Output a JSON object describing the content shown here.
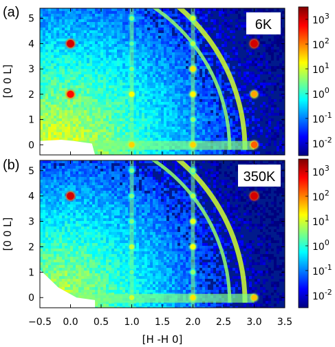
{
  "chart_data": [
    {
      "type": "heatmap",
      "panel_label": "(a)",
      "temperature_label": "6K",
      "xlabel": "",
      "ylabel": "[0 0 L]",
      "xlim": [
        -0.5,
        3.5
      ],
      "ylim": [
        -0.4,
        5.4
      ],
      "yticks": [
        "0",
        "1",
        "2",
        "3",
        "4",
        "5"
      ],
      "bragg_peaks": [
        {
          "h": 0.0,
          "l": 4.0,
          "log_intensity": 3.0
        },
        {
          "h": 0.0,
          "l": 2.0,
          "log_intensity": 2.7
        },
        {
          "h": 1.0,
          "l": 5.0,
          "log_intensity": 0.5
        },
        {
          "h": 1.0,
          "l": 4.0,
          "log_intensity": 0.3
        },
        {
          "h": 1.0,
          "l": 3.0,
          "log_intensity": 0.5
        },
        {
          "h": 1.0,
          "l": 2.0,
          "log_intensity": 1.2
        },
        {
          "h": 1.0,
          "l": 1.0,
          "log_intensity": 0.4
        },
        {
          "h": 1.0,
          "l": 0.0,
          "log_intensity": 1.5
        },
        {
          "h": 2.0,
          "l": 5.0,
          "log_intensity": 1.0
        },
        {
          "h": 2.0,
          "l": 4.0,
          "log_intensity": 0.8
        },
        {
          "h": 2.0,
          "l": 3.0,
          "log_intensity": 1.4
        },
        {
          "h": 2.0,
          "l": 2.0,
          "log_intensity": 1.3
        },
        {
          "h": 2.0,
          "l": 1.0,
          "log_intensity": 0.6
        },
        {
          "h": 2.0,
          "l": 0.0,
          "log_intensity": 1.5
        },
        {
          "h": 3.0,
          "l": 4.0,
          "log_intensity": 3.0
        },
        {
          "h": 3.0,
          "l": 2.0,
          "log_intensity": 1.8
        },
        {
          "h": 3.0,
          "l": 0.0,
          "log_intensity": 2.2
        }
      ]
    },
    {
      "type": "heatmap",
      "panel_label": "(b)",
      "temperature_label": "350K",
      "xlabel": "[H -H 0]",
      "ylabel": "[0 0 L]",
      "xlim": [
        -0.5,
        3.5
      ],
      "ylim": [
        -0.4,
        5.4
      ],
      "xticks": [
        "−0.5",
        "0.0",
        "0.5",
        "1.0",
        "1.5",
        "2.0",
        "2.5",
        "3.0",
        "3.5"
      ],
      "yticks": [
        "0",
        "1",
        "2",
        "3",
        "4",
        "5"
      ],
      "bragg_peaks": [
        {
          "h": 0.0,
          "l": 4.0,
          "log_intensity": 3.0
        },
        {
          "h": 1.0,
          "l": 5.0,
          "log_intensity": 0.5
        },
        {
          "h": 1.0,
          "l": 4.0,
          "log_intensity": 0.5
        },
        {
          "h": 1.0,
          "l": 3.0,
          "log_intensity": 0.5
        },
        {
          "h": 1.0,
          "l": 2.0,
          "log_intensity": 0.9
        },
        {
          "h": 1.0,
          "l": 1.0,
          "log_intensity": 0.4
        },
        {
          "h": 1.0,
          "l": 0.0,
          "log_intensity": 1.0
        },
        {
          "h": 2.0,
          "l": 5.0,
          "log_intensity": 0.6
        },
        {
          "h": 2.0,
          "l": 4.0,
          "log_intensity": 0.8
        },
        {
          "h": 2.0,
          "l": 3.0,
          "log_intensity": 1.1
        },
        {
          "h": 2.0,
          "l": 2.0,
          "log_intensity": 1.2
        },
        {
          "h": 2.0,
          "l": 1.0,
          "log_intensity": 0.6
        },
        {
          "h": 2.0,
          "l": 0.0,
          "log_intensity": 1.4
        },
        {
          "h": 3.0,
          "l": 4.0,
          "log_intensity": 3.0
        },
        {
          "h": 3.0,
          "l": 0.0,
          "log_intensity": 1.6
        }
      ]
    }
  ],
  "colorbar": {
    "scale": "log",
    "range_exponents": [
      -2.5,
      3.5
    ],
    "ticks": [
      {
        "exp": 3,
        "label": "10",
        "sup": "3"
      },
      {
        "exp": 2,
        "label": "10",
        "sup": "2"
      },
      {
        "exp": 1,
        "label": "10",
        "sup": "1"
      },
      {
        "exp": 0,
        "label": "10",
        "sup": "0"
      },
      {
        "exp": -1,
        "label": "10",
        "sup": "-1"
      },
      {
        "exp": -2,
        "label": "10",
        "sup": "-2"
      }
    ],
    "colormap": [
      "#00007f",
      "#0000ff",
      "#007fff",
      "#00ffff",
      "#7fff7f",
      "#ffff00",
      "#ff7f00",
      "#ff0000",
      "#7f0000"
    ]
  }
}
